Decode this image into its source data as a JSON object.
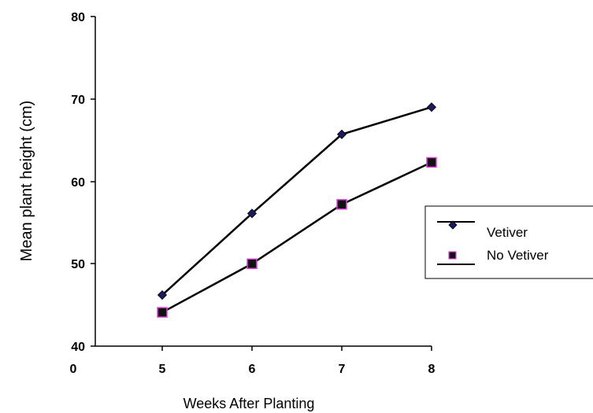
{
  "chart_data": {
    "type": "line",
    "x": [
      5,
      6,
      7,
      8
    ],
    "x_tick_labels": [
      "0",
      "5",
      "6",
      "7",
      "8"
    ],
    "y_tick_labels": [
      "40",
      "50",
      "60",
      "70",
      "80"
    ],
    "ylim": [
      40,
      80
    ],
    "xlabel": "Weeks After Planting",
    "ylabel": "Mean plant height (cm)",
    "grid": false,
    "legend_position": "right",
    "series": [
      {
        "name": "Vetiver",
        "values": [
          46.2,
          56.1,
          65.7,
          69.0
        ],
        "marker": "diamond",
        "line_color": "#000000",
        "marker_color": "#1a1a5e"
      },
      {
        "name": "No Vetiver",
        "values": [
          44.1,
          50.0,
          57.2,
          62.3
        ],
        "marker": "square",
        "line_color": "#000000",
        "marker_color": "#111111",
        "marker_edge_color": "#e040e0"
      }
    ]
  }
}
